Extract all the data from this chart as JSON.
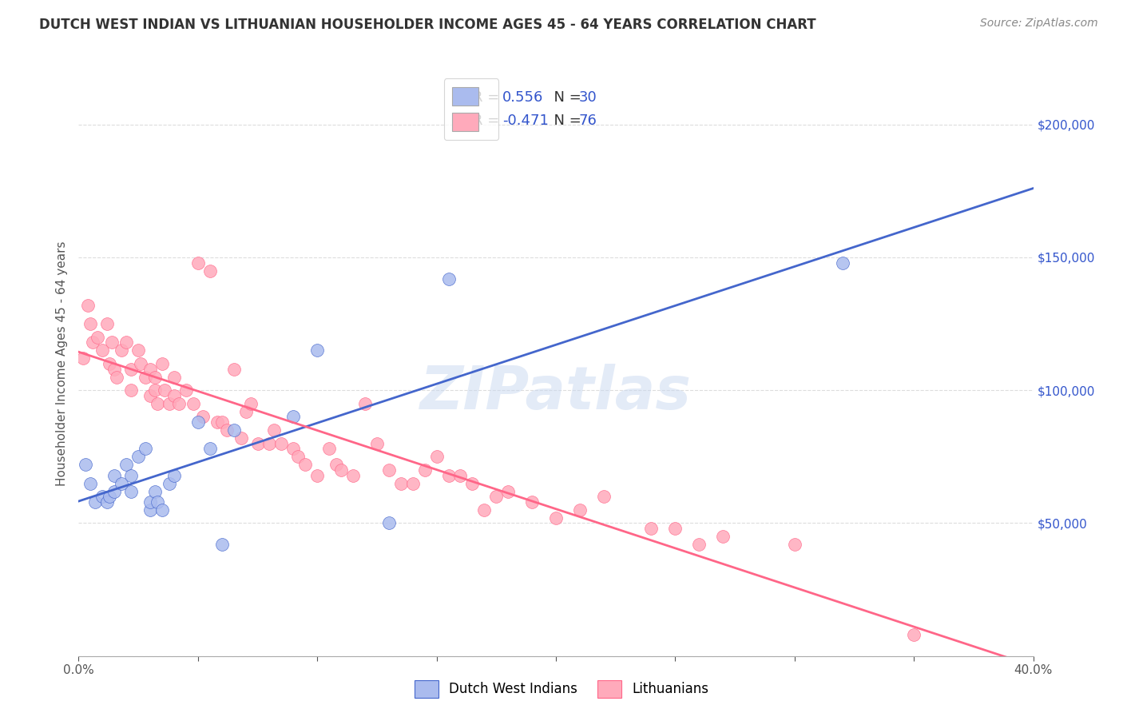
{
  "title": "DUTCH WEST INDIAN VS LITHUANIAN HOUSEHOLDER INCOME AGES 45 - 64 YEARS CORRELATION CHART",
  "source": "Source: ZipAtlas.com",
  "ylabel": "Householder Income Ages 45 - 64 years",
  "x_min": 0.0,
  "x_max": 0.4,
  "y_min": 0,
  "y_max": 220000,
  "x_ticks": [
    0.0,
    0.05,
    0.1,
    0.15,
    0.2,
    0.25,
    0.3,
    0.35,
    0.4
  ],
  "x_tick_labels": [
    "0.0%",
    "",
    "",
    "",
    "",
    "",
    "",
    "",
    "40.0%"
  ],
  "y_ticks": [
    0,
    50000,
    100000,
    150000,
    200000
  ],
  "legend_entry1_r": "0.556",
  "legend_entry1_n": "30",
  "legend_entry2_r": "-0.471",
  "legend_entry2_n": "76",
  "legend_text_color": "#3355cc",
  "scatter_blue_color": "#aabbee",
  "scatter_pink_color": "#ffaabb",
  "line_blue_color": "#4466cc",
  "line_pink_color": "#ff6688",
  "watermark": "ZIPatlas",
  "background_color": "#ffffff",
  "grid_color": "#dddddd",
  "blue_x": [
    0.003,
    0.005,
    0.007,
    0.01,
    0.012,
    0.013,
    0.015,
    0.015,
    0.018,
    0.02,
    0.022,
    0.022,
    0.025,
    0.028,
    0.03,
    0.03,
    0.032,
    0.033,
    0.035,
    0.038,
    0.04,
    0.05,
    0.055,
    0.06,
    0.065,
    0.09,
    0.1,
    0.13,
    0.155,
    0.32
  ],
  "blue_y": [
    72000,
    65000,
    58000,
    60000,
    58000,
    60000,
    62000,
    68000,
    65000,
    72000,
    62000,
    68000,
    75000,
    78000,
    55000,
    58000,
    62000,
    58000,
    55000,
    65000,
    68000,
    88000,
    78000,
    42000,
    85000,
    90000,
    115000,
    50000,
    142000,
    148000
  ],
  "pink_x": [
    0.002,
    0.004,
    0.005,
    0.006,
    0.008,
    0.01,
    0.012,
    0.013,
    0.014,
    0.015,
    0.016,
    0.018,
    0.02,
    0.022,
    0.022,
    0.025,
    0.026,
    0.028,
    0.03,
    0.03,
    0.032,
    0.032,
    0.033,
    0.035,
    0.036,
    0.038,
    0.04,
    0.04,
    0.042,
    0.045,
    0.048,
    0.05,
    0.052,
    0.055,
    0.058,
    0.06,
    0.062,
    0.065,
    0.068,
    0.07,
    0.072,
    0.075,
    0.08,
    0.082,
    0.085,
    0.09,
    0.092,
    0.095,
    0.1,
    0.105,
    0.108,
    0.11,
    0.115,
    0.12,
    0.125,
    0.13,
    0.135,
    0.14,
    0.145,
    0.15,
    0.155,
    0.16,
    0.165,
    0.17,
    0.175,
    0.18,
    0.19,
    0.2,
    0.21,
    0.22,
    0.24,
    0.25,
    0.26,
    0.27,
    0.3,
    0.35
  ],
  "pink_y": [
    112000,
    132000,
    125000,
    118000,
    120000,
    115000,
    125000,
    110000,
    118000,
    108000,
    105000,
    115000,
    118000,
    108000,
    100000,
    115000,
    110000,
    105000,
    108000,
    98000,
    100000,
    105000,
    95000,
    110000,
    100000,
    95000,
    105000,
    98000,
    95000,
    100000,
    95000,
    148000,
    90000,
    145000,
    88000,
    88000,
    85000,
    108000,
    82000,
    92000,
    95000,
    80000,
    80000,
    85000,
    80000,
    78000,
    75000,
    72000,
    68000,
    78000,
    72000,
    70000,
    68000,
    95000,
    80000,
    70000,
    65000,
    65000,
    70000,
    75000,
    68000,
    68000,
    65000,
    55000,
    60000,
    62000,
    58000,
    52000,
    55000,
    60000,
    48000,
    48000,
    42000,
    45000,
    42000,
    8000
  ]
}
